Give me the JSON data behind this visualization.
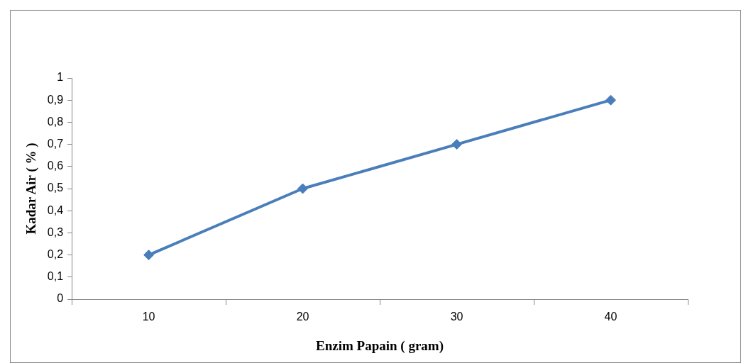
{
  "chart_data": {
    "type": "line",
    "xlabel": "Enzim Papain ( gram)",
    "ylabel": "Kadar Air ( % )",
    "categories": [
      "10",
      "20",
      "30",
      "40"
    ],
    "series": [
      {
        "color": "#4a7ebb",
        "values": [
          0.2,
          0.5,
          0.7,
          0.9
        ]
      }
    ],
    "ylim": [
      0,
      1
    ],
    "yticks": [
      0,
      {
        "value": 0.1,
        "label": "0,1"
      },
      {
        "value": 0.2,
        "label": "0,2"
      },
      {
        "value": 0.3,
        "label": "0,3"
      },
      {
        "value": 0.4,
        "label": "0,4"
      },
      {
        "value": 0.5,
        "label": "0,5"
      },
      {
        "value": 0.6,
        "label": "0,6"
      },
      {
        "value": 0.7,
        "label": "0,7"
      },
      {
        "value": 0.8,
        "label": "0,8"
      },
      {
        "value": 0.9,
        "label": "0,9"
      },
      1
    ],
    "marker": "diamond",
    "line_style": "solid"
  }
}
